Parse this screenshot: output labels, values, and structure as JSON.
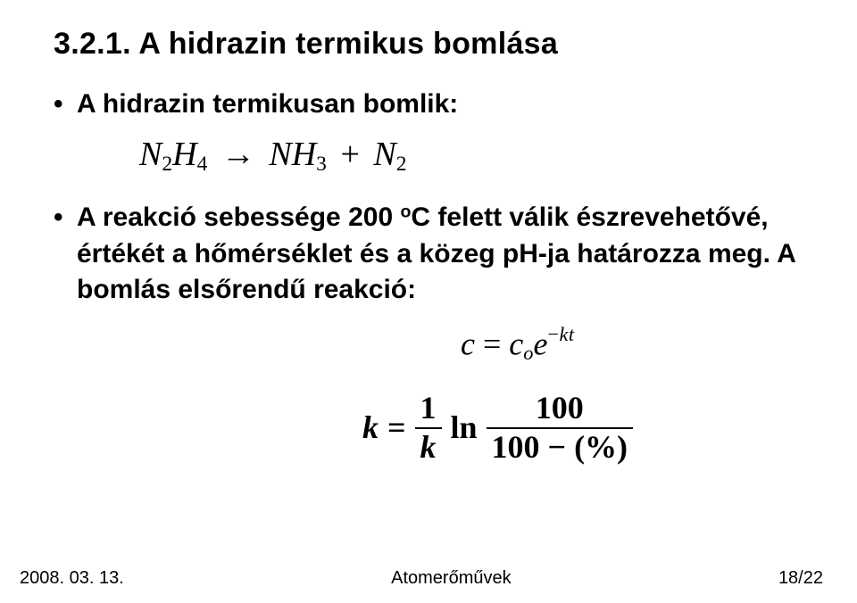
{
  "colors": {
    "background": "#ffffff",
    "text": "#000000"
  },
  "fonts": {
    "body": "Arial",
    "math": "Times New Roman"
  },
  "title": "3.2.1. A hidrazin termikus bomlása",
  "bullet1": {
    "text": "A hidrazin termikusan bomlik:",
    "equation": {
      "lhs": {
        "base": "N",
        "sub1": "2",
        "mid": "H",
        "sub2": "4"
      },
      "arrow": "→",
      "rhs_a": {
        "base": "NH",
        "sub": "3"
      },
      "plus": "+",
      "rhs_b": {
        "base": "N",
        "sub": "2"
      }
    }
  },
  "bullet2": {
    "prefix": "A reakció sebessége 200 ",
    "degree_o": "o",
    "degree_unit": "C",
    "suffix": " felett válik észrevehetővé, értékét a hőmérséklet és a közeg pH-ja határozza meg. A bomlás elsőrendű reakció:"
  },
  "eq_decay": {
    "c": "c",
    "eq": " = ",
    "c2": "c",
    "sub_o": "o",
    "e": "e",
    "exp_minus": "−",
    "exp_kt": "kt"
  },
  "eq_k": {
    "k": "k",
    "eq": " = ",
    "frac1_num": "1",
    "frac1_den": "k",
    "ln": "ln",
    "frac2_num": "100",
    "frac2_den_a": "100",
    "frac2_den_minus": " − ",
    "frac2_den_b": "(%)"
  },
  "footer": {
    "left": "2008. 03. 13.",
    "center": "Atomerőművek",
    "right": "18/22"
  }
}
